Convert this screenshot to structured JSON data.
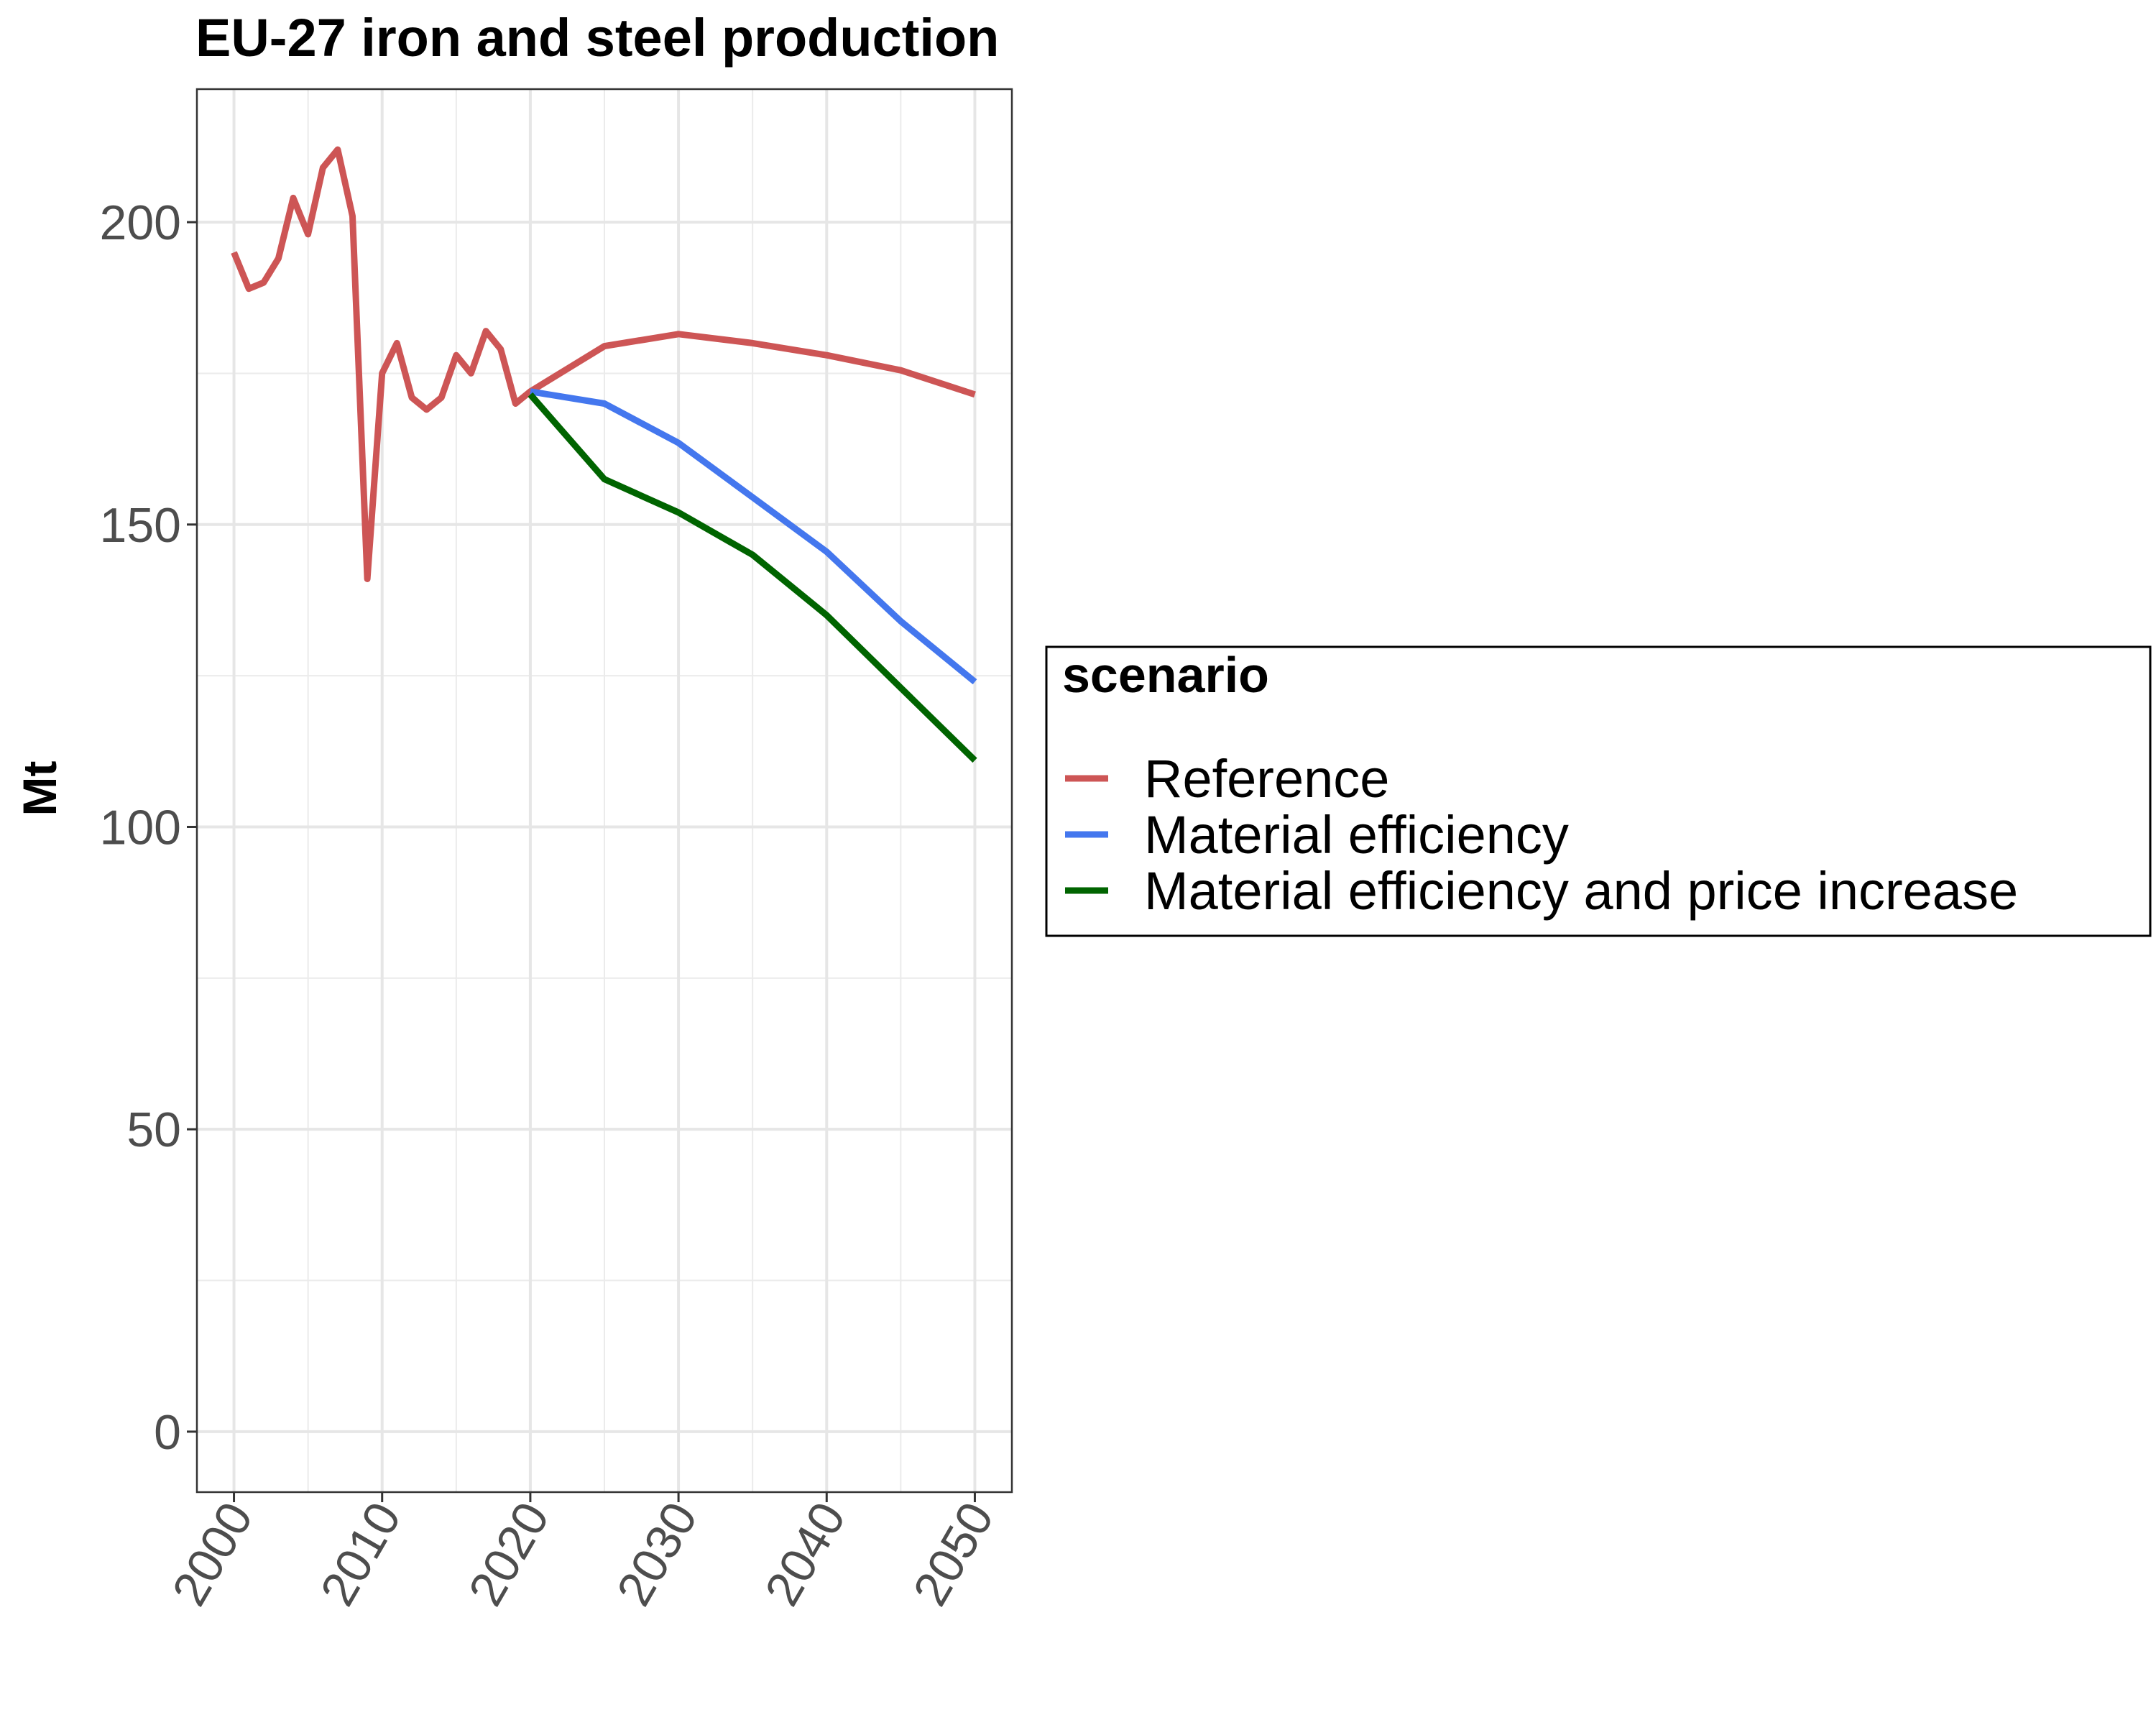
{
  "chart_data": {
    "type": "line",
    "title": "EU-27  iron and steel production",
    "xlabel": "",
    "ylabel": "Mt",
    "xlim": [
      1997.5,
      2052.5
    ],
    "ylim": [
      -10,
      222
    ],
    "x_ticks": [
      2000,
      2010,
      2020,
      2030,
      2040,
      2050
    ],
    "y_ticks": [
      0,
      50,
      100,
      150,
      200
    ],
    "grid": true,
    "legend": {
      "title": "scenario",
      "position": "right"
    },
    "series": [
      {
        "name": "Reference",
        "color": "#cd5555",
        "x": [
          2000,
          2001,
          2002,
          2003,
          2004,
          2005,
          2006,
          2007,
          2008,
          2009,
          2010,
          2011,
          2012,
          2013,
          2014,
          2015,
          2016,
          2017,
          2018,
          2019,
          2020,
          2025,
          2030,
          2035,
          2040,
          2045,
          2050
        ],
        "y": [
          195,
          189,
          190,
          194,
          204,
          198,
          209,
          212,
          201,
          141,
          175,
          180,
          171,
          169,
          171,
          178,
          175,
          182,
          179,
          170,
          172,
          179.5,
          181.5,
          180,
          178,
          175.5,
          171.5
        ]
      },
      {
        "name": "Material efficiency",
        "color": "#4477ee",
        "x": [
          2020,
          2025,
          2030,
          2035,
          2040,
          2045,
          2050
        ],
        "y": [
          172,
          170,
          163.5,
          154.5,
          145.5,
          134,
          124
        ]
      },
      {
        "name": "Material efficiency and price increase",
        "color": "#006400",
        "x": [
          2020,
          2025,
          2030,
          2035,
          2040,
          2045,
          2050
        ],
        "y": [
          171.5,
          157.5,
          152,
          145,
          135,
          123,
          111
        ]
      }
    ]
  }
}
